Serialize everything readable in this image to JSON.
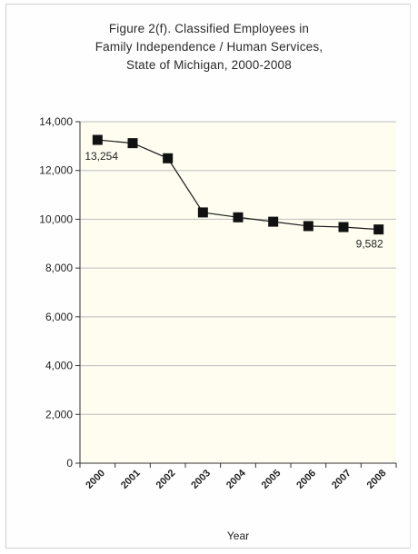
{
  "chart_data": {
    "type": "line",
    "title_lines": [
      "Figure 2(f). Classified Employees in",
      "Family Independence / Human Services,",
      "State of Michigan, 2000-2008"
    ],
    "xlabel": "Year",
    "ylabel": "",
    "categories": [
      "2000",
      "2001",
      "2002",
      "2003",
      "2004",
      "2005",
      "2006",
      "2007",
      "2008"
    ],
    "series": [
      {
        "values": [
          13254,
          13120,
          12500,
          10280,
          10080,
          9900,
          9720,
          9680,
          9582
        ]
      }
    ],
    "data_labels": [
      {
        "index": 0,
        "text": "13,254"
      },
      {
        "index": 8,
        "text": "9,582"
      }
    ],
    "ylim": [
      0,
      14000
    ],
    "yticks": [
      0,
      2000,
      4000,
      6000,
      8000,
      10000,
      12000,
      14000
    ],
    "ytick_labels": [
      "0",
      "2,000",
      "4,000",
      "6,000",
      "8,000",
      "10,000",
      "12,000",
      "14,000"
    ],
    "grid": true,
    "marker": "square",
    "colors": {
      "line": "#1a1a1a",
      "marker": "#111111",
      "plot_bg": "#fefdf0",
      "grid": "#bdbdbd"
    }
  }
}
